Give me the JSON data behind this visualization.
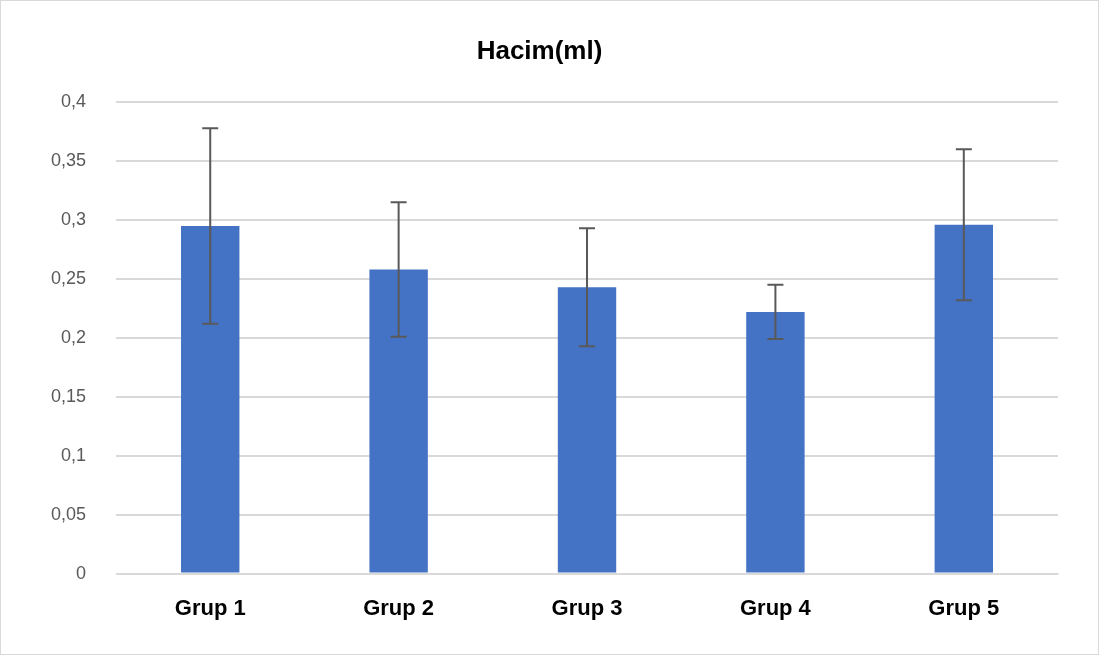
{
  "chart_data": {
    "type": "bar",
    "title": "Hacim(ml)",
    "categories": [
      "Grup 1",
      "Grup 2",
      "Grup 3",
      "Grup 4",
      "Grup 5"
    ],
    "values": [
      0.295,
      0.258,
      0.243,
      0.222,
      0.296
    ],
    "errors": [
      0.083,
      0.057,
      0.05,
      0.023,
      0.064
    ],
    "color": "#4472c4",
    "ylim": [
      0,
      0.4
    ],
    "yticks": [
      0,
      {
        "value": 0.05,
        "label": "0,05"
      },
      {
        "value": 0.1,
        "label": "0,1"
      },
      {
        "value": 0.15,
        "label": "0,15"
      },
      {
        "value": 0.2,
        "label": "0,2"
      },
      {
        "value": 0.25,
        "label": "0,25"
      },
      {
        "value": 0.3,
        "label": "0,3"
      },
      {
        "value": 0.35,
        "label": "0,35"
      },
      {
        "value": 0.4,
        "label": "0,4"
      }
    ],
    "grid": "y",
    "legend": false
  }
}
